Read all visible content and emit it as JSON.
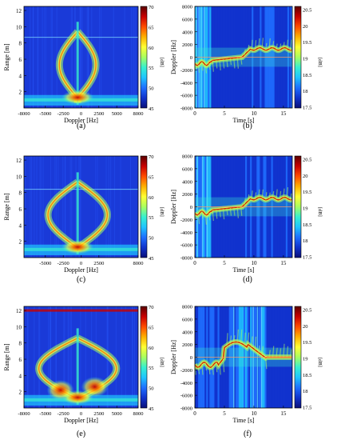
{
  "colormap": [
    "#0a0f7a",
    "#1133cc",
    "#1e6fff",
    "#1fc4ff",
    "#37f0d0",
    "#a8ff60",
    "#ffff33",
    "#ffb000",
    "#ff4c00",
    "#c80000",
    "#5a0000"
  ],
  "panels": [
    {
      "id": "a",
      "label": "(a)",
      "kind": "range-doppler",
      "xlabel": "Doppler [Hz]",
      "ylabel": "Range [m]",
      "cbar_unit": "[dB]",
      "xticks": [
        "-8000",
        "-5000",
        "-2500",
        "0",
        "2500",
        "5000",
        "8000"
      ],
      "yticks": [
        "2",
        "4",
        "6",
        "8",
        "10",
        "12"
      ],
      "cbar_ticks": [
        "45",
        "50",
        "55",
        "60",
        "65",
        "70"
      ]
    },
    {
      "id": "b",
      "label": "(b)",
      "kind": "spectrogram",
      "xlabel": "Time [s]",
      "ylabel": "Doppler [Hz]",
      "cbar_unit": "[dB]",
      "xticks": [
        "0",
        "5",
        "10",
        "15"
      ],
      "yticks": [
        "8000",
        "6000",
        "4000",
        "2000",
        "0",
        "-2000",
        "-4000",
        "-6000",
        "-8000"
      ],
      "cbar_ticks": [
        "20.5",
        "20",
        "19.5",
        "19",
        "18.5",
        "18",
        "17.5"
      ]
    },
    {
      "id": "c",
      "label": "(c)",
      "kind": "range-doppler",
      "xlabel": "Doppler [Hz]",
      "ylabel": "Range [m]",
      "cbar_unit": "[dB]",
      "xticks": [
        "-5000",
        "-2500",
        "0",
        "2500",
        "8000"
      ],
      "yticks": [
        "2",
        "4",
        "6",
        "8",
        "10",
        "12"
      ],
      "cbar_ticks": [
        "45",
        "50",
        "55",
        "60",
        "65",
        "70"
      ]
    },
    {
      "id": "d",
      "label": "(d)",
      "kind": "spectrogram",
      "xlabel": "Time [s]",
      "ylabel": "Doppler [Hz]",
      "cbar_unit": "[dB]",
      "xticks": [
        "0",
        "5",
        "10",
        "15"
      ],
      "yticks": [
        "8000",
        "6000",
        "4000",
        "2000",
        "0",
        "-2000",
        "-4000",
        "-6000",
        "-8000"
      ],
      "cbar_ticks": [
        "20.5",
        "20",
        "19.5",
        "19",
        "18.5",
        "18",
        "17.5"
      ]
    },
    {
      "id": "e",
      "label": "(e)",
      "kind": "range-doppler",
      "xlabel": "Doppler [Hz]",
      "ylabel": "Range [m]",
      "cbar_unit": "[dB]",
      "xticks": [
        "-8000",
        "-5000",
        "-2500",
        "0",
        "2500",
        "5000",
        "8000"
      ],
      "yticks": [
        "2",
        "4",
        "6",
        "8",
        "10",
        "12"
      ],
      "cbar_ticks": [
        "45",
        "50",
        "55",
        "60",
        "65",
        "70"
      ]
    },
    {
      "id": "f",
      "label": "(f)",
      "kind": "spectrogram",
      "xlabel": "Time [s]",
      "ylabel": "Doppler [Hz]",
      "cbar_unit": "[dB]",
      "xticks": [
        "0",
        "5",
        "10",
        "15"
      ],
      "yticks": [
        "8000",
        "6000",
        "4000",
        "2000",
        "0",
        "-2000",
        "-4000",
        "-6000",
        "-8000"
      ],
      "cbar_ticks": [
        "20.5",
        "20",
        "19.5",
        "19",
        "18.5",
        "18",
        "17.5"
      ]
    }
  ],
  "chart_data": [
    {
      "type": "heatmap",
      "panel": "(a)",
      "xlabel": "Doppler [Hz]",
      "ylabel": "Range [m]",
      "xlim": [
        -8000,
        8000
      ],
      "ylim": [
        0,
        12.5
      ],
      "colorbar": {
        "label": "[dB]",
        "range": [
          45,
          70
        ]
      }
    },
    {
      "type": "heatmap",
      "panel": "(b)",
      "xlabel": "Time [s]",
      "ylabel": "Doppler [Hz]",
      "xlim": [
        0,
        16.5
      ],
      "ylim": [
        -8000,
        8000
      ],
      "colorbar": {
        "label": "[dB]",
        "range": [
          17.5,
          20.5
        ]
      }
    },
    {
      "type": "heatmap",
      "panel": "(c)",
      "xlabel": "Doppler [Hz]",
      "ylabel": "Range [m]",
      "xlim": [
        -8000,
        8000
      ],
      "ylim": [
        0,
        12.5
      ],
      "colorbar": {
        "label": "[dB]",
        "range": [
          45,
          70
        ]
      }
    },
    {
      "type": "heatmap",
      "panel": "(d)",
      "xlabel": "Time [s]",
      "ylabel": "Doppler [Hz]",
      "xlim": [
        0,
        16.5
      ],
      "ylim": [
        -8000,
        8000
      ],
      "colorbar": {
        "label": "[dB]",
        "range": [
          17.5,
          20.5
        ]
      }
    },
    {
      "type": "heatmap",
      "panel": "(e)",
      "xlabel": "Doppler [Hz]",
      "ylabel": "Range [m]",
      "xlim": [
        -8000,
        8000
      ],
      "ylim": [
        0,
        12.5
      ],
      "colorbar": {
        "label": "[dB]",
        "range": [
          45,
          70
        ]
      }
    },
    {
      "type": "heatmap",
      "panel": "(f)",
      "xlabel": "Time [s]",
      "ylabel": "Doppler [Hz]",
      "xlim": [
        0,
        16.5
      ],
      "ylim": [
        -8000,
        8000
      ],
      "colorbar": {
        "label": "[dB]",
        "range": [
          17.5,
          20.5
        ]
      }
    }
  ]
}
